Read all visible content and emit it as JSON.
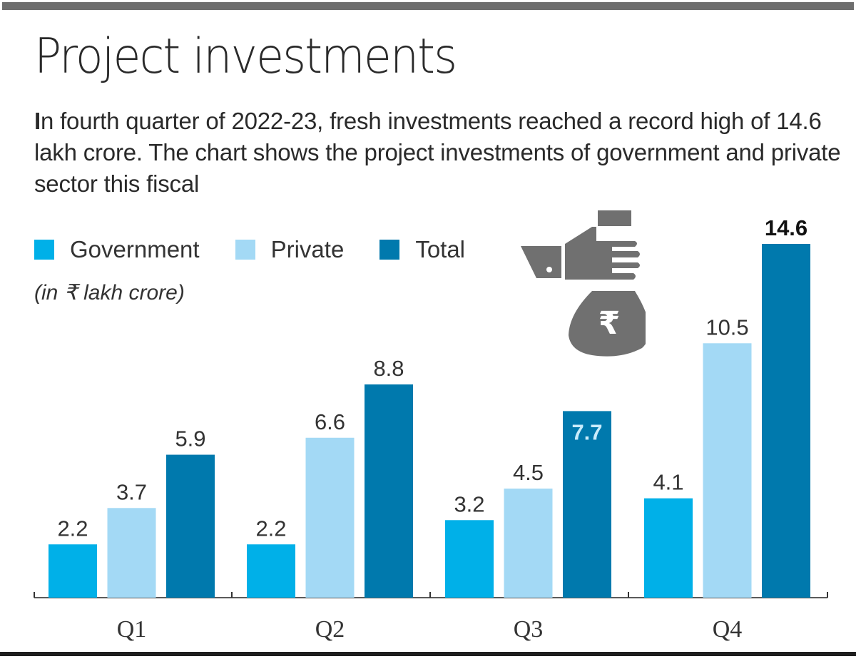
{
  "title": "Project investments",
  "subtitle_lead": "I",
  "subtitle_rest": "n fourth quarter of 2022-23, fresh investments reached a record high of 14.6 lakh crore. The chart shows the project investments of government and private sector this fiscal",
  "unit_note": "(in ₹ lakh crore)",
  "icon": {
    "name": "hand-money-bag-rupee-icon",
    "symbol": "₹"
  },
  "colors": {
    "government": "#00b0e8",
    "private": "#a3d9f5",
    "total": "#0079ad",
    "icon": "#707070",
    "axis": "#5a5a5a"
  },
  "legend": [
    {
      "label": "Government",
      "color": "#00b0e8"
    },
    {
      "label": "Private",
      "color": "#a3d9f5"
    },
    {
      "label": "Total",
      "color": "#0079ad"
    }
  ],
  "chart_data": {
    "type": "bar",
    "title": "Project investments",
    "xlabel": "",
    "ylabel": "in ₹ lakh crore",
    "categories": [
      "Q1",
      "Q2",
      "Q3",
      "Q4"
    ],
    "series": [
      {
        "name": "Government",
        "color": "#00b0e8",
        "values": [
          2.2,
          2.2,
          3.2,
          4.1
        ]
      },
      {
        "name": "Private",
        "color": "#a3d9f5",
        "values": [
          3.7,
          6.6,
          4.5,
          10.5
        ]
      },
      {
        "name": "Total",
        "color": "#0079ad",
        "values": [
          5.9,
          8.8,
          7.7,
          14.6
        ]
      }
    ],
    "data_labels": [
      [
        "2.2",
        "2.2",
        "3.2",
        "4.1"
      ],
      [
        "3.7",
        "6.6",
        "4.5",
        "10.5"
      ],
      [
        "5.9",
        "8.8",
        "7.7",
        "14.6"
      ]
    ],
    "highlighted_labels": [
      {
        "series": "Total",
        "category": "Q3",
        "style": "inside-bar-light"
      },
      {
        "series": "Total",
        "category": "Q4",
        "style": "bold"
      }
    ],
    "ylim": [
      0,
      14.6
    ],
    "grid": false,
    "legend_position": "top-left"
  }
}
